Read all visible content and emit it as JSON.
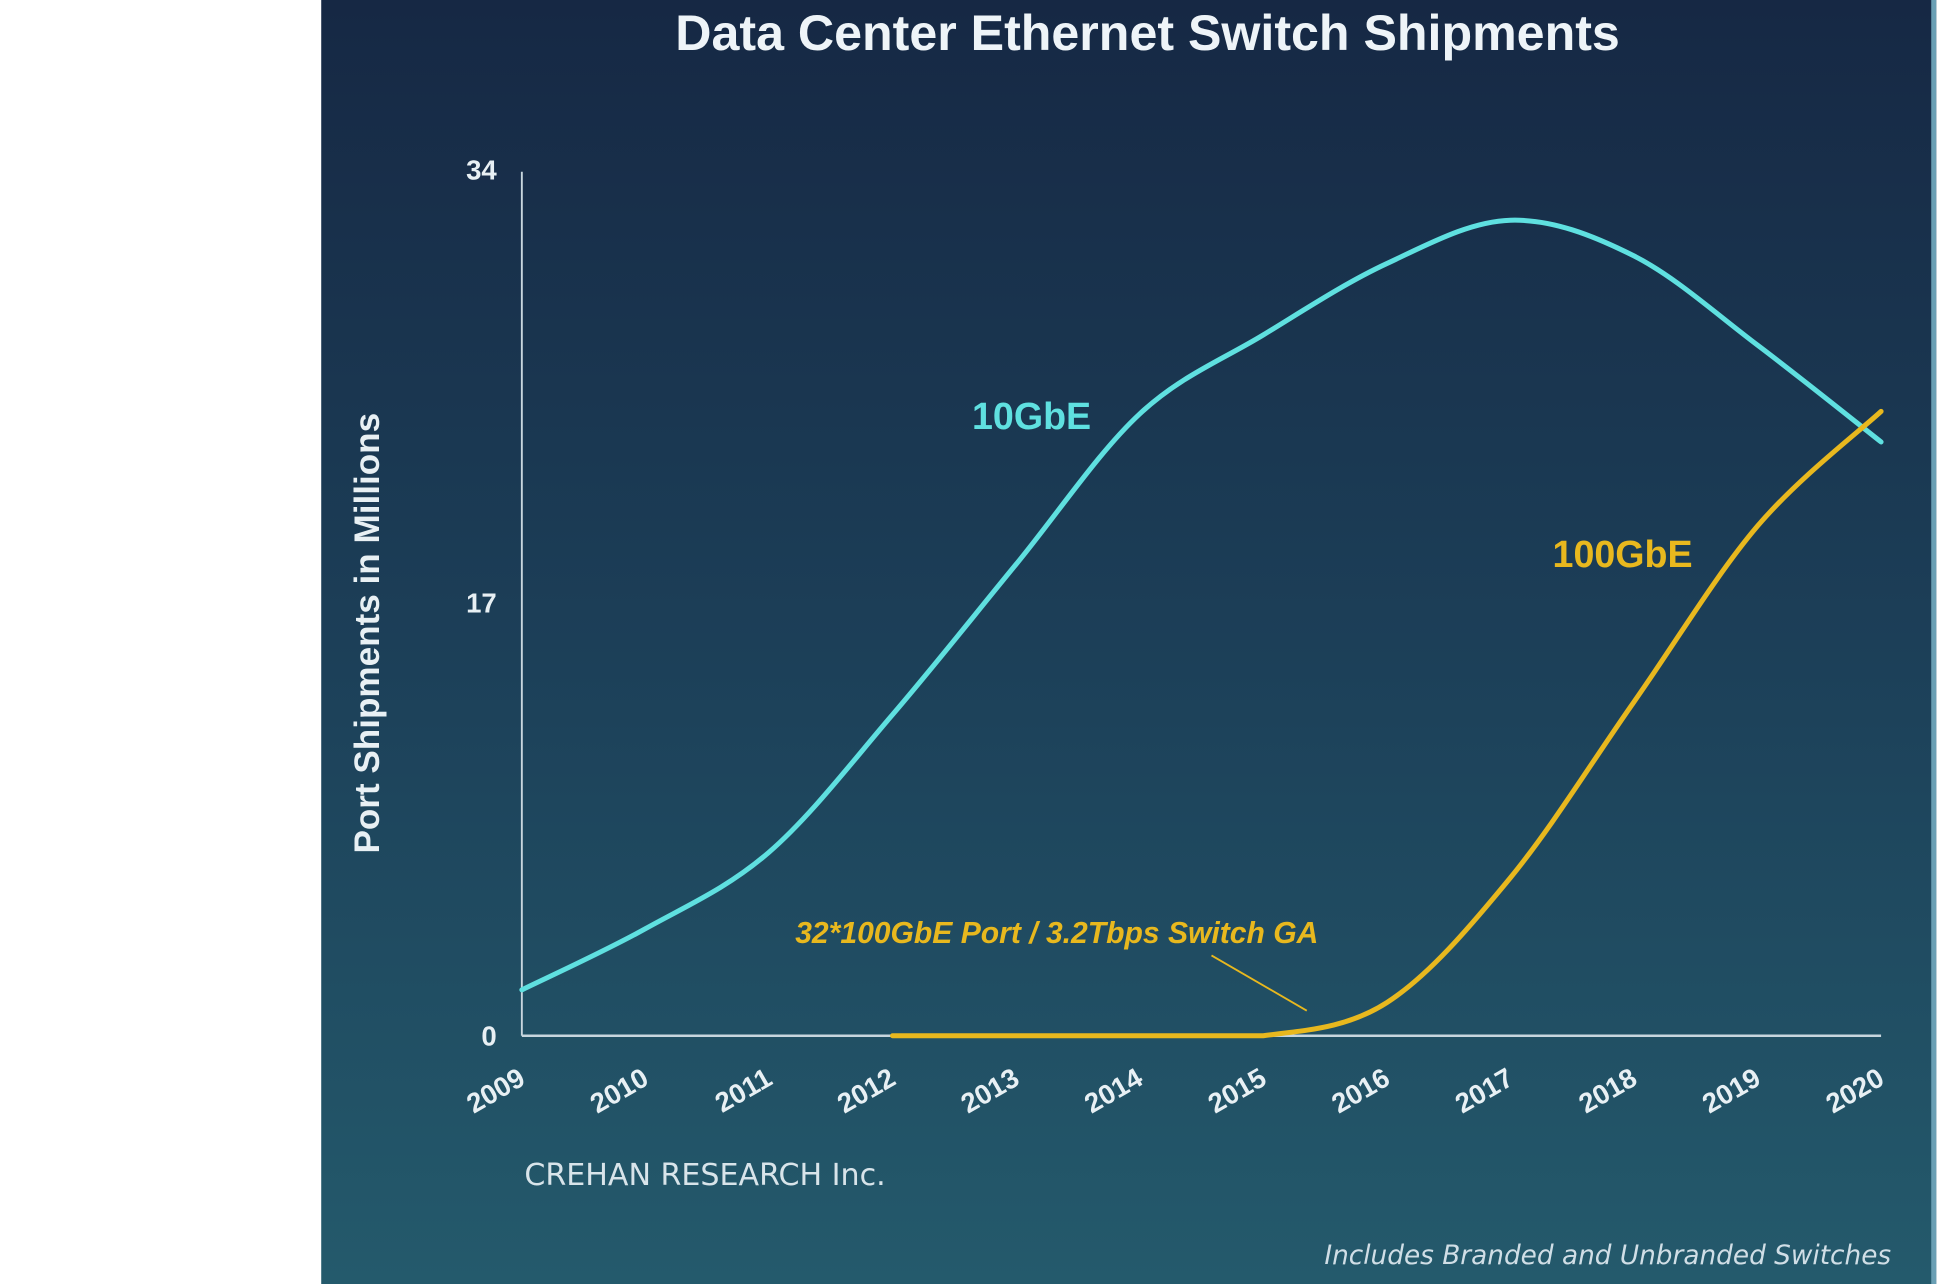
{
  "chart_data": {
    "type": "line",
    "title": "Data Center Ethernet Switch Shipments",
    "xlabel": "",
    "ylabel": "Port Shipments in Millions",
    "ylim": [
      0,
      34
    ],
    "yticks": [
      "0",
      "17",
      "34"
    ],
    "x": [
      "2009",
      "2010",
      "2011",
      "2012",
      "2013",
      "2014",
      "2015",
      "2016",
      "2017",
      "2018",
      "2019",
      "2020"
    ],
    "grid": false,
    "series": [
      {
        "name": "10GbE",
        "color": "#5fe0e0",
        "values": [
          1.8,
          4.2,
          7.2,
          12.6,
          18.5,
          24.4,
          27.5,
          30.3,
          32.0,
          30.6,
          27.1,
          23.3
        ]
      },
      {
        "name": "100GbE",
        "color": "#e8b81e",
        "values": [
          null,
          null,
          null,
          0,
          0,
          0,
          0,
          1.3,
          6.2,
          13.1,
          20.0,
          24.5
        ]
      }
    ],
    "annotations": [
      {
        "text": "32*100GbE Port / 3.2Tbps Switch GA",
        "points_to_year": "2015.5"
      }
    ],
    "source": "CREHAN RESEARCH Inc.",
    "footnote": "Includes Branded and Unbranded Switches"
  }
}
